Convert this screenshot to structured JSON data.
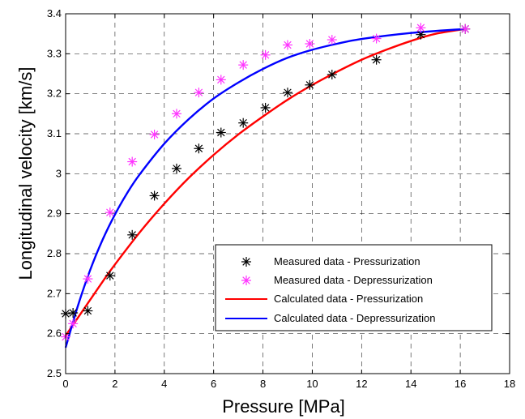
{
  "chart_data": {
    "type": "scatter",
    "xlabel": "Pressure [MPa]",
    "ylabel": "Longitudinal velocity [km/s]",
    "xlim": [
      0,
      18
    ],
    "ylim": [
      2.5,
      3.4
    ],
    "xticks": [
      "0",
      "2",
      "4",
      "6",
      "8",
      "10",
      "12",
      "14",
      "16",
      "18"
    ],
    "yticks": [
      "2.5",
      "2.6",
      "2.7",
      "2.8",
      "2.9",
      "3",
      "3.1",
      "3.2",
      "3.3",
      "3.4"
    ],
    "grid": true,
    "legend_position": "lower-right",
    "series": [
      {
        "name": "Measured data - Pressurization",
        "kind": "markers",
        "marker": "asterisk",
        "color": "#000000",
        "x": [
          0,
          0.3,
          0.9,
          1.8,
          2.7,
          3.6,
          4.5,
          5.4,
          6.3,
          7.2,
          8.1,
          9.0,
          9.9,
          10.8,
          12.6,
          14.4,
          16.2
        ],
        "y": [
          2.65,
          2.652,
          2.657,
          2.745,
          2.847,
          2.945,
          3.013,
          3.063,
          3.103,
          3.127,
          3.165,
          3.203,
          3.222,
          3.248,
          3.285,
          3.348,
          3.362
        ]
      },
      {
        "name": "Measured data - Depressurization",
        "kind": "markers",
        "marker": "asterisk",
        "color": "#ff33ff",
        "x": [
          0,
          0.3,
          0.9,
          1.8,
          2.7,
          3.6,
          4.5,
          5.4,
          6.3,
          7.2,
          8.1,
          9.0,
          9.9,
          10.8,
          12.6,
          14.4,
          16.2
        ],
        "y": [
          2.592,
          2.625,
          2.737,
          2.903,
          3.03,
          3.098,
          3.15,
          3.203,
          3.235,
          3.272,
          3.297,
          3.322,
          3.325,
          3.335,
          3.338,
          3.365,
          3.362
        ]
      },
      {
        "name": "Calculated data - Pressurization",
        "kind": "line",
        "color": "#ff0000",
        "x": [
          0,
          0.5,
          1,
          1.5,
          2,
          3,
          4,
          5,
          6,
          7,
          8,
          9,
          10,
          11,
          12,
          13,
          14,
          15,
          16.2
        ],
        "y": [
          2.595,
          2.64,
          2.685,
          2.73,
          2.773,
          2.853,
          2.925,
          2.99,
          3.047,
          3.098,
          3.143,
          3.185,
          3.222,
          3.255,
          3.285,
          3.31,
          3.332,
          3.35,
          3.362
        ]
      },
      {
        "name": "Calculated data - Depressurization",
        "kind": "line",
        "color": "#0000ff",
        "x": [
          0,
          0.5,
          1,
          1.5,
          2,
          2.5,
          3,
          4,
          5,
          6,
          7,
          8,
          9,
          10,
          11,
          12,
          14,
          16.2
        ],
        "y": [
          2.565,
          2.67,
          2.76,
          2.835,
          2.898,
          2.952,
          2.998,
          3.075,
          3.137,
          3.188,
          3.228,
          3.262,
          3.29,
          3.31,
          3.325,
          3.337,
          3.352,
          3.362
        ]
      }
    ]
  }
}
